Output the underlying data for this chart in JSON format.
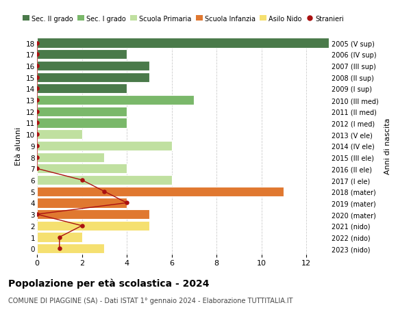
{
  "ages": [
    18,
    17,
    16,
    15,
    14,
    13,
    12,
    11,
    10,
    9,
    8,
    7,
    6,
    5,
    4,
    3,
    2,
    1,
    0
  ],
  "right_labels": [
    "2005 (V sup)",
    "2006 (IV sup)",
    "2007 (III sup)",
    "2008 (II sup)",
    "2009 (I sup)",
    "2010 (III med)",
    "2011 (II med)",
    "2012 (I med)",
    "2013 (V ele)",
    "2014 (IV ele)",
    "2015 (III ele)",
    "2016 (II ele)",
    "2017 (I ele)",
    "2018 (mater)",
    "2019 (mater)",
    "2020 (mater)",
    "2021 (nido)",
    "2022 (nido)",
    "2023 (nido)"
  ],
  "bar_values": [
    13,
    4,
    5,
    5,
    4,
    7,
    4,
    4,
    2,
    6,
    3,
    4,
    6,
    11,
    4,
    5,
    5,
    2,
    3
  ],
  "bar_colors": [
    "#4a7a4a",
    "#4a7a4a",
    "#4a7a4a",
    "#4a7a4a",
    "#4a7a4a",
    "#7ab86a",
    "#7ab86a",
    "#7ab86a",
    "#c0e0a0",
    "#c0e0a0",
    "#c0e0a0",
    "#c0e0a0",
    "#c0e0a0",
    "#e07830",
    "#e07830",
    "#e07830",
    "#f5e070",
    "#f5e070",
    "#f5e070"
  ],
  "stranieri_x": [
    0,
    0,
    0,
    0,
    0,
    0,
    0,
    0,
    0,
    0,
    0,
    0,
    2,
    3,
    4,
    0,
    2,
    1,
    1
  ],
  "stranieri_ages": [
    18,
    17,
    16,
    15,
    14,
    13,
    12,
    11,
    10,
    9,
    8,
    7,
    6,
    5,
    4,
    3,
    2,
    1,
    0
  ],
  "legend_labels": [
    "Sec. II grado",
    "Sec. I grado",
    "Scuola Primaria",
    "Scuola Infanzia",
    "Asilo Nido",
    "Stranieri"
  ],
  "legend_colors": [
    "#4a7a4a",
    "#7ab86a",
    "#c0e0a0",
    "#e07830",
    "#f5e070",
    "#aa1111"
  ],
  "title": "Popolazione per età scolastica - 2024",
  "subtitle": "COMUNE DI PIAGGINE (SA) - Dati ISTAT 1° gennaio 2024 - Elaborazione TUTTITALIA.IT",
  "ylabel_left": "Età alunni",
  "ylabel_right": "Anni di nascita",
  "xlim": [
    0,
    13
  ],
  "ylim": [
    -0.5,
    18.5
  ],
  "bar_height": 0.85,
  "stranieri_color": "#aa1111",
  "grid_color": "#cccccc",
  "background_color": "#ffffff"
}
